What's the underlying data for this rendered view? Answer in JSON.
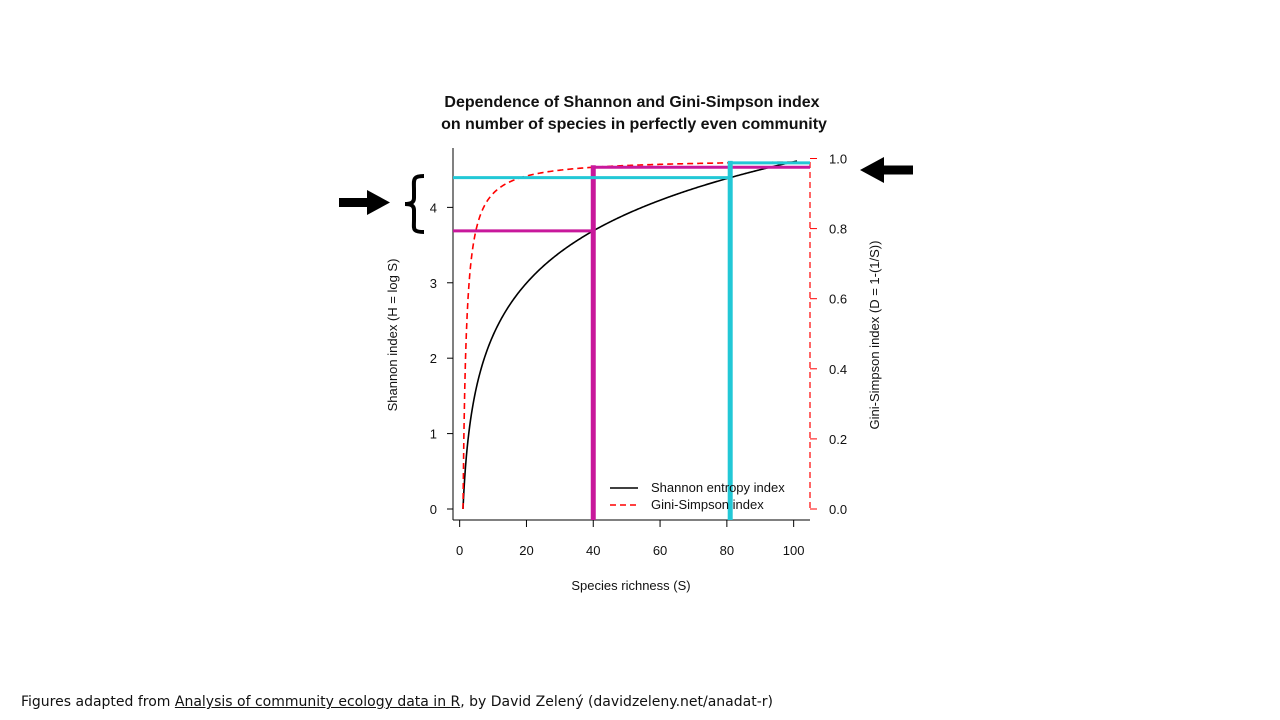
{
  "chart_data": {
    "type": "line",
    "title_line1": "Dependence of Shannon and Gini-Simpson index",
    "title_line2": "on number of species in perfectly even community",
    "xlabel": "Species richness (S)",
    "ylabel_left": "Shannon index (H = log S)",
    "ylabel_right": "Gini-Simpson index (D = 1-(1/S))",
    "xlim": [
      1,
      101
    ],
    "ylim_left": [
      0,
      4.615
    ],
    "ylim_right": [
      0,
      0.99
    ],
    "x_ticks": [
      "0",
      "20",
      "40",
      "60",
      "80",
      "100"
    ],
    "y_left_ticks": [
      "0",
      "1",
      "2",
      "3",
      "4"
    ],
    "y_right_ticks": [
      "0.0",
      "0.2",
      "0.4",
      "0.6",
      "0.8",
      "1.0"
    ],
    "series": [
      {
        "name": "Shannon entropy index",
        "formula": "log(S)",
        "color": "#000000",
        "style": "solid",
        "axis": "left",
        "x_range": [
          1,
          101
        ]
      },
      {
        "name": "Gini-Simpson index",
        "formula": "1 - 1/S",
        "color": "#ff0000",
        "style": "dashed",
        "axis": "right",
        "x_range": [
          1,
          101
        ]
      }
    ],
    "annotations": {
      "magenta_color": "#c8189b",
      "cyan_color": "#22c8d6",
      "magenta_species": 40,
      "cyan_species": 81
    },
    "legend_position": "bottom-right",
    "grid": false
  },
  "caption": {
    "prefix": "Figures adapted from ",
    "link": "Analysis of community ecology data in R",
    "suffix": ", by David Zelený (davidzeleny.net/anadat-r)"
  }
}
